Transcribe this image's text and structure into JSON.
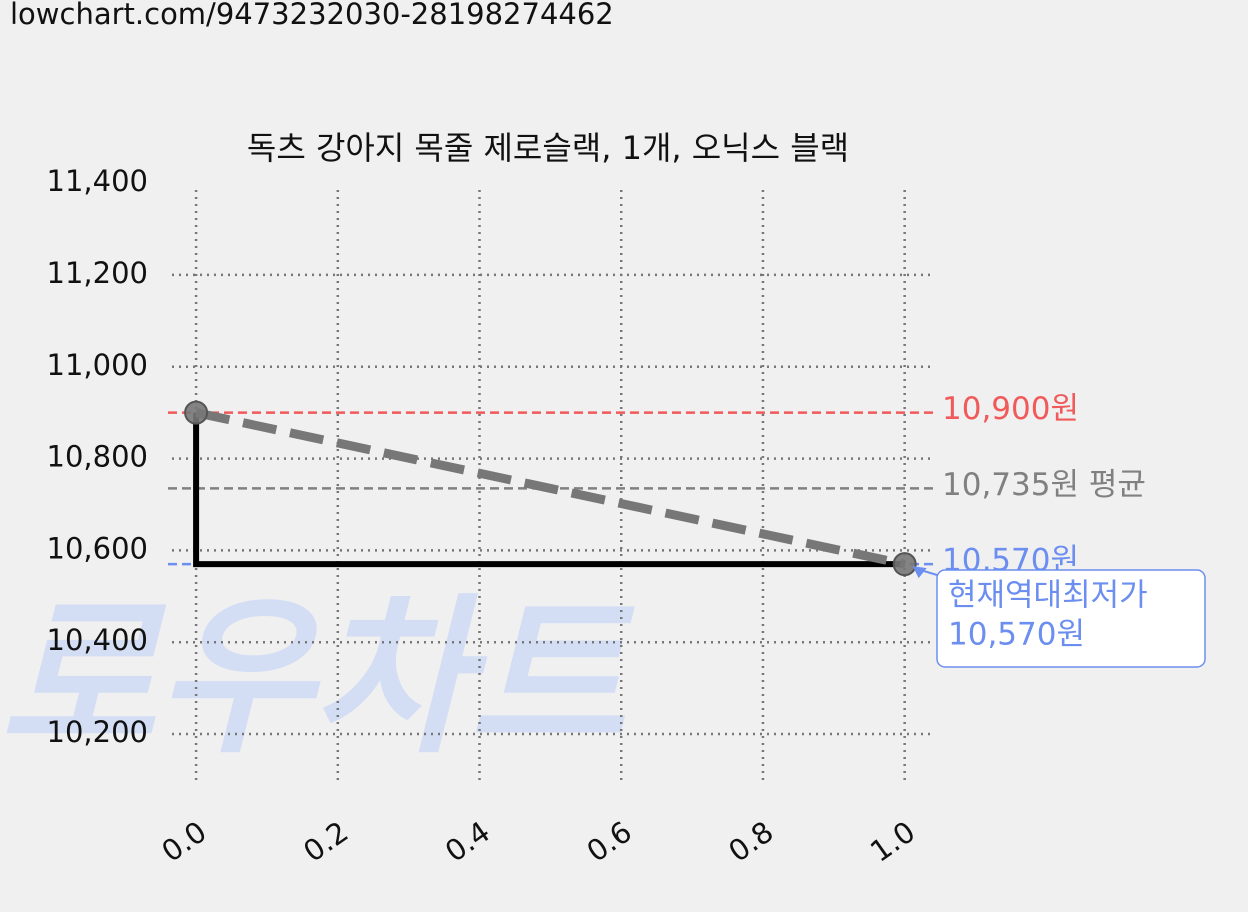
{
  "url": "lowchart.com/9473232030-28198274462",
  "chart_data": {
    "type": "line",
    "title": "독츠 강아지 목줄 제로슬랙, 1개, 오닉스 블랙",
    "watermark": "로우차트",
    "xlim": [
      -0.034,
      1.04
    ],
    "ylim": [
      10089,
      11385
    ],
    "xticks": [
      {
        "value": 0,
        "label": "0.0"
      },
      {
        "value": 0.2,
        "label": "0.2"
      },
      {
        "value": 0.4,
        "label": "0.4"
      },
      {
        "value": 0.6,
        "label": "0.6"
      },
      {
        "value": 0.8,
        "label": "0.8"
      },
      {
        "value": 1,
        "label": "1.0"
      }
    ],
    "yticks": [
      {
        "value": 10200,
        "label": "10,200"
      },
      {
        "value": 10400,
        "label": "10,400"
      },
      {
        "value": 10600,
        "label": "10,600"
      },
      {
        "value": 10800,
        "label": "10,800"
      },
      {
        "value": 11000,
        "label": "11,000"
      },
      {
        "value": 11200,
        "label": "11,200"
      },
      {
        "value": 11400,
        "label": "11,400"
      }
    ],
    "grid": true,
    "series": [
      {
        "color": "#000000",
        "style": "solid",
        "x": [
          0,
          0,
          1
        ],
        "values": [
          10900,
          10570,
          10570
        ]
      },
      {
        "color": "#777777",
        "style": "dashed",
        "markers": true,
        "x": [
          0,
          1
        ],
        "values": [
          10900,
          10570
        ]
      }
    ],
    "reference_lines": [
      {
        "value": 10900,
        "label": "10,900원",
        "color": "#f05a5a"
      },
      {
        "value": 10735,
        "label": "10,735원 평균",
        "color": "#808080"
      },
      {
        "value": 10570,
        "label": "10,570원",
        "color": "#6b8ef0"
      }
    ],
    "annotation": {
      "x": 1,
      "y": 10570,
      "lines": [
        "현재역대최저가",
        "10,570원"
      ],
      "color": "#6b8ef0"
    }
  }
}
